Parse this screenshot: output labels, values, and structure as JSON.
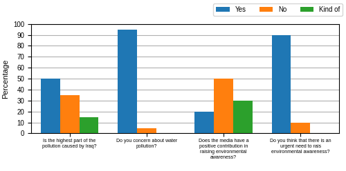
{
  "chart_data": {
    "type": "bar",
    "categories": [
      "Is the highest part of the\npollution caused by Iraq?",
      "Do you concern about water\npollution?",
      "Does the media have a\npositive contribution in\nraising environmental\nawareness?",
      "Do you think that there is an\nurgent need to rais\nenvironmental awareness?"
    ],
    "series": [
      {
        "name": "Yes",
        "values": [
          50,
          95,
          20,
          90
        ]
      },
      {
        "name": "No",
        "values": [
          35,
          5,
          50,
          10
        ]
      },
      {
        "name": "Kind of",
        "values": [
          15,
          0,
          30,
          0
        ]
      }
    ],
    "ylabel": "Percentage",
    "ylim": [
      0,
      100
    ],
    "yticks": [
      0,
      10,
      20,
      30,
      40,
      50,
      60,
      70,
      80,
      90,
      100
    ],
    "grid": true,
    "legend": "upper right"
  }
}
